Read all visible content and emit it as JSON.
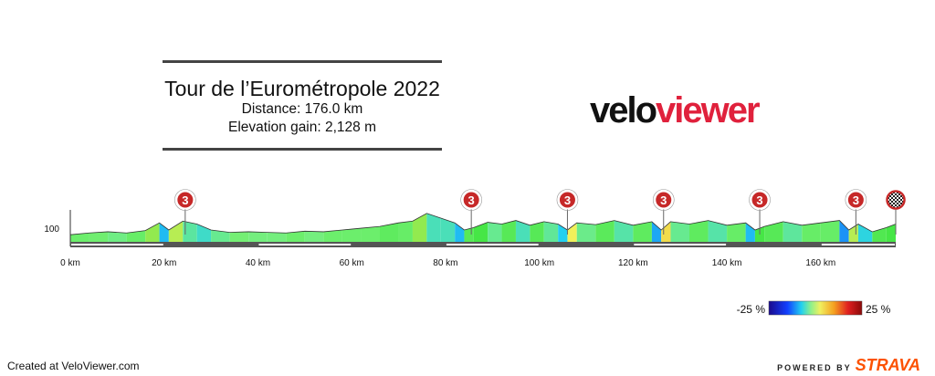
{
  "header": {
    "title": "Tour de l’Eurométropole 2022",
    "distance": "Distance: 176.0 km",
    "elevation": "Elevation gain: 2,128 m"
  },
  "logo": {
    "part1": "velo",
    "part2": "viewer"
  },
  "footer": {
    "created": "Created at VeloViewer.com",
    "powered": "POWERED BY",
    "brand": "STRAVA"
  },
  "colors": {
    "brand_red": "#e0213c",
    "marker_red": "#c62828",
    "strava_orange": "#fc5200"
  },
  "chart_data": {
    "type": "area",
    "xlabel": "",
    "ylabel": "",
    "xlim": [
      0,
      176
    ],
    "x_ticks": [
      0,
      20,
      40,
      60,
      80,
      100,
      120,
      140,
      160
    ],
    "x_tick_labels": [
      "0 km",
      "20 km",
      "40 km",
      "60 km",
      "80 km",
      "100 km",
      "120 km",
      "140 km",
      "160 km"
    ],
    "y_ticks": [
      100
    ],
    "y_tick_labels": [
      "100"
    ],
    "ylim": [
      80,
      140
    ],
    "profile": {
      "x": [
        0,
        4,
        8,
        12,
        16,
        19,
        21,
        24,
        27,
        30,
        34,
        38,
        42,
        46,
        50,
        54,
        58,
        62,
        66,
        70,
        73,
        76,
        79,
        82,
        84,
        86,
        89,
        92,
        95,
        98,
        101,
        104,
        106,
        108,
        112,
        116,
        120,
        124,
        126,
        128,
        132,
        136,
        140,
        144,
        146,
        148,
        152,
        156,
        160,
        164,
        166,
        168,
        171,
        174,
        176
      ],
      "elevation": [
        92,
        95,
        97,
        95,
        99,
        112,
        100,
        115,
        110,
        100,
        96,
        97,
        96,
        95,
        98,
        97,
        100,
        103,
        106,
        112,
        115,
        128,
        120,
        112,
        100,
        104,
        113,
        110,
        116,
        108,
        114,
        110,
        100,
        112,
        109,
        116,
        108,
        114,
        100,
        114,
        110,
        116,
        108,
        112,
        100,
        106,
        114,
        108,
        112,
        116,
        100,
        110,
        97,
        104,
        110
      ]
    },
    "climb_markers": [
      {
        "km": 24.5,
        "label": "3"
      },
      {
        "km": 85.5,
        "label": "3"
      },
      {
        "km": 106,
        "label": "3"
      },
      {
        "km": 126.5,
        "label": "3"
      },
      {
        "km": 147,
        "label": "3"
      },
      {
        "km": 167.5,
        "label": "3"
      }
    ],
    "finish_km": 176,
    "gradient_scale": {
      "min_label": "-25 %",
      "max_label": "25 %",
      "min": -25,
      "max": 25
    }
  }
}
